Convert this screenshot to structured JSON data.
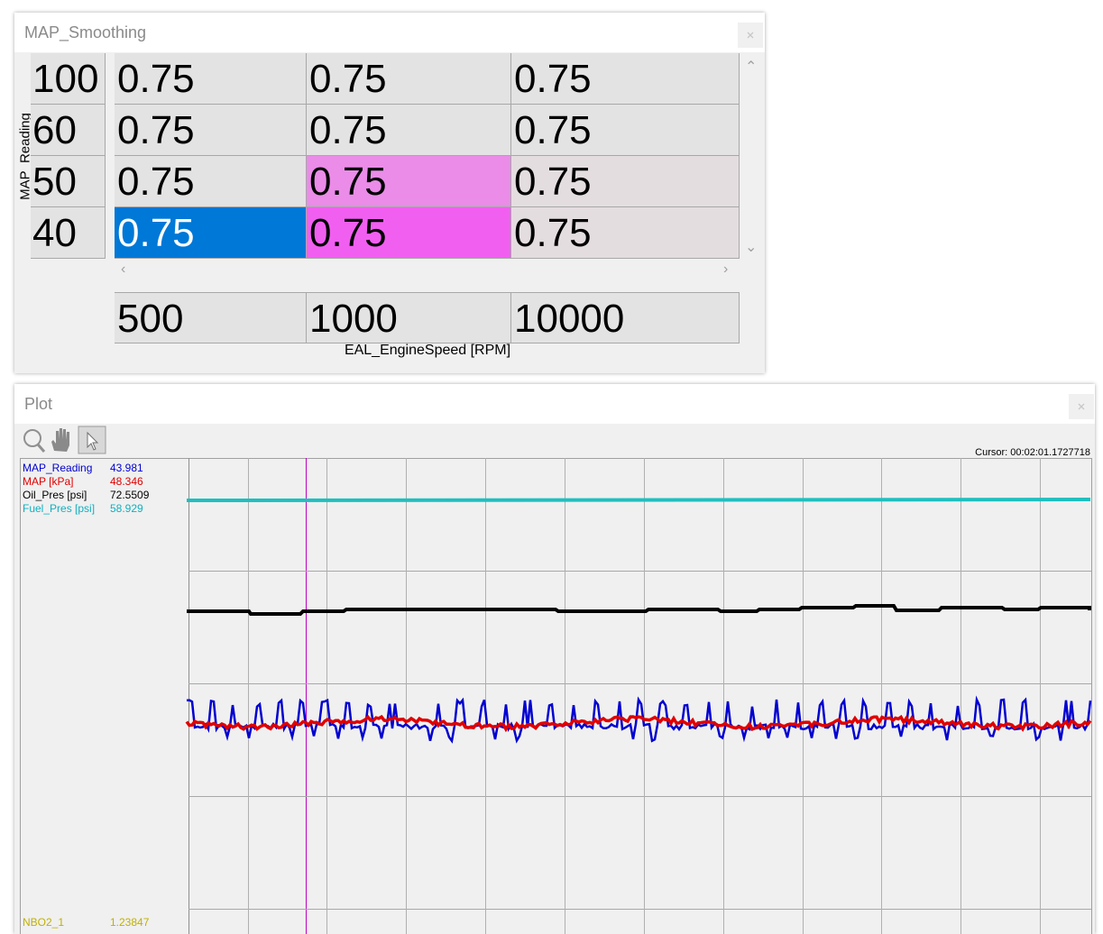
{
  "map_window": {
    "title": "MAP_Smoothing",
    "y_axis_label": "MAP_Reading",
    "row_headers": [
      "100",
      "60",
      "50",
      "40"
    ],
    "cells": [
      [
        "0.75",
        "0.75",
        "0.75"
      ],
      [
        "0.75",
        "0.75",
        "0.75"
      ],
      [
        "0.75",
        "0.75",
        "0.75"
      ],
      [
        "0.75",
        "0.75",
        "0.75"
      ]
    ],
    "column_headers": [
      "500",
      "1000",
      "10000"
    ],
    "x_axis_label": "EAL_EngineSpeed [RPM]"
  },
  "plot_window": {
    "title": "Plot",
    "cursor": "Cursor: 00:02:01.1727718",
    "legend": [
      {
        "name": "MAP_Reading",
        "value": "43.981"
      },
      {
        "name": "MAP [kPa]",
        "value": "48.346"
      },
      {
        "name": "Oil_Pres [psi]",
        "value": "72.5509"
      },
      {
        "name": "Fuel_Pres [psi]",
        "value": "58.929"
      }
    ],
    "lower_legend": [
      {
        "name": "NBO2_1",
        "value": "1.23847"
      }
    ]
  }
}
